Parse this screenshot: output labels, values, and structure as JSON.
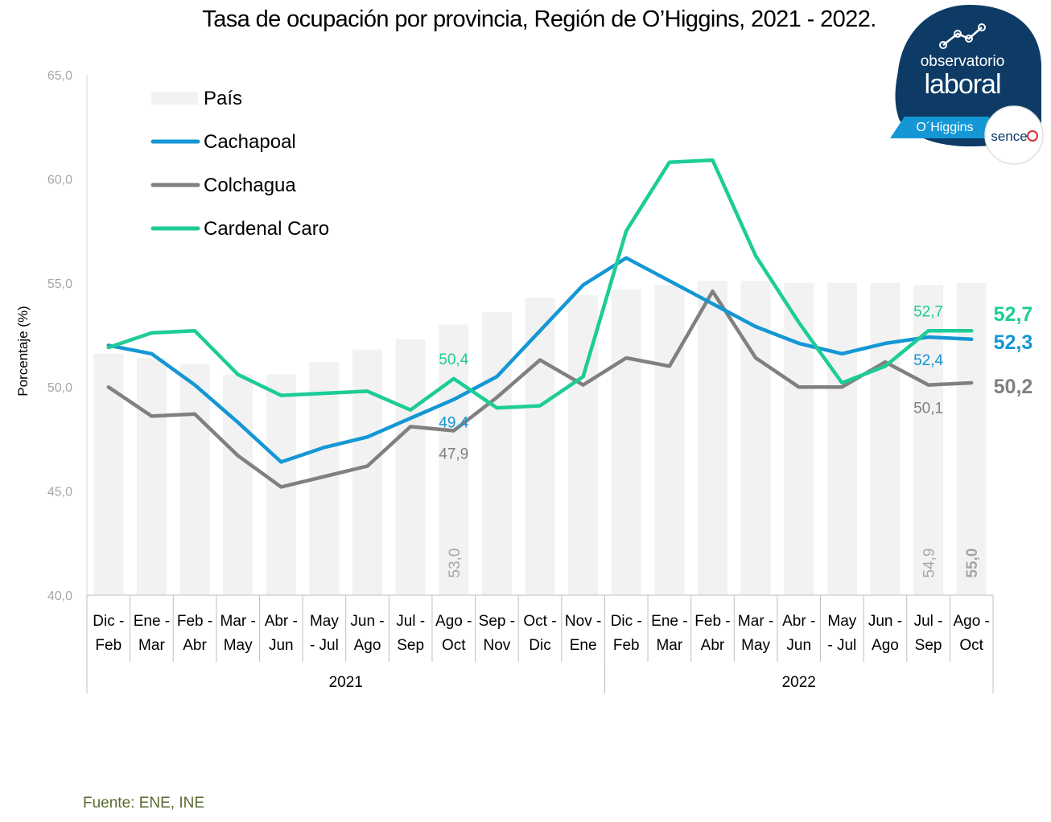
{
  "title": "Tasa de ocupación por provincia, Región de O’Higgins, 2021 - 2022.",
  "source": "Fuente: ENE, INE",
  "logo": {
    "line1": "observatorio",
    "line2": "laboral",
    "region": "O´Higgins",
    "partner": "sence"
  },
  "colors": {
    "pais": "#f2f2f2",
    "cachapoal": "#1497d4",
    "colchagua": "#808080",
    "cardenal_caro": "#1dcc96",
    "axis_text": "#a6a6a6",
    "logo_dark": "#0d3b66",
    "partner_red": "#d32f2f"
  },
  "chart_data": {
    "type": "bar+line",
    "ylabel": "Porcentaje (%)",
    "ylim": [
      40,
      65
    ],
    "yticks": [
      "40,0",
      "45,0",
      "50,0",
      "55,0",
      "60,0",
      "65,0"
    ],
    "categories": [
      "Dic - Feb",
      "Ene - Mar",
      "Feb - Abr",
      "Mar - May",
      "Abr - Jun",
      "May - Jul",
      "Jun - Ago",
      "Jul - Sep",
      "Ago - Oct",
      "Sep - Nov",
      "Oct - Dic",
      "Nov - Ene",
      "Dic - Feb",
      "Ene - Mar",
      "Feb - Abr",
      "Mar - May",
      "Abr - Jun",
      "May - Jul",
      "Jun - Ago",
      "Jul - Sep",
      "Ago - Oct"
    ],
    "category_lines": [
      [
        "Dic -",
        "Feb"
      ],
      [
        "Ene -",
        "Mar"
      ],
      [
        "Feb -",
        "Abr"
      ],
      [
        "Mar -",
        "May"
      ],
      [
        "Abr -",
        "Jun"
      ],
      [
        "May",
        "- Jul"
      ],
      [
        "Jun -",
        "Ago"
      ],
      [
        "Jul -",
        "Sep"
      ],
      [
        "Ago -",
        "Oct"
      ],
      [
        "Sep -",
        "Nov"
      ],
      [
        "Oct -",
        "Dic"
      ],
      [
        "Nov -",
        "Ene"
      ],
      [
        "Dic -",
        "Feb"
      ],
      [
        "Ene -",
        "Mar"
      ],
      [
        "Feb -",
        "Abr"
      ],
      [
        "Mar -",
        "May"
      ],
      [
        "Abr -",
        "Jun"
      ],
      [
        "May",
        "- Jul"
      ],
      [
        "Jun -",
        "Ago"
      ],
      [
        "Jul -",
        "Sep"
      ],
      [
        "Ago -",
        "Oct"
      ]
    ],
    "groups": [
      {
        "label": "2021",
        "from": 0,
        "to": 11
      },
      {
        "label": "2022",
        "from": 12,
        "to": 20
      }
    ],
    "bar_series": {
      "name": "País",
      "values": [
        51.6,
        51.4,
        51.1,
        50.6,
        50.6,
        51.2,
        51.8,
        52.3,
        53.0,
        53.6,
        54.3,
        54.4,
        54.7,
        54.9,
        55.1,
        55.1,
        55.0,
        55.0,
        55.0,
        54.9,
        55.0
      ]
    },
    "series": [
      {
        "name": "Cachapoal",
        "key": "cachapoal",
        "values": [
          52.0,
          51.6,
          50.1,
          48.3,
          46.4,
          47.1,
          47.6,
          48.5,
          49.4,
          50.5,
          52.7,
          54.9,
          56.2,
          55.1,
          54.0,
          52.9,
          52.1,
          51.6,
          52.1,
          52.4,
          52.3
        ]
      },
      {
        "name": "Colchagua",
        "key": "colchagua",
        "values": [
          50.0,
          48.6,
          48.7,
          46.7,
          45.2,
          45.7,
          46.2,
          48.1,
          47.9,
          49.5,
          51.3,
          50.1,
          51.4,
          51.0,
          54.6,
          51.4,
          50.0,
          50.0,
          51.2,
          50.1,
          50.2
        ]
      },
      {
        "name": "Cardenal Caro",
        "key": "cardenal_caro",
        "values": [
          51.9,
          52.6,
          52.7,
          50.6,
          49.6,
          49.7,
          49.8,
          48.9,
          50.4,
          49.0,
          49.1,
          50.5,
          57.5,
          60.8,
          60.9,
          56.3,
          53.1,
          50.2,
          51.0,
          52.7,
          52.7
        ]
      }
    ],
    "annotations": [
      {
        "series": "cardenal_caro",
        "index": 8,
        "text": "50,4",
        "pos": "above"
      },
      {
        "series": "cachapoal",
        "index": 8,
        "text": "49,4",
        "pos": "below"
      },
      {
        "series": "colchagua",
        "index": 8,
        "text": "47,9",
        "pos": "below"
      },
      {
        "series": "cardenal_caro",
        "index": 19,
        "text": "52,7",
        "pos": "above"
      },
      {
        "series": "cachapoal",
        "index": 19,
        "text": "52,4",
        "pos": "below"
      },
      {
        "series": "colchagua",
        "index": 19,
        "text": "50,1",
        "pos": "below"
      }
    ],
    "end_labels": [
      {
        "series": "cardenal_caro",
        "text": "52,7",
        "row": 0
      },
      {
        "series": "cachapoal",
        "text": "52,3",
        "row": 1
      },
      {
        "series": "colchagua",
        "text": "50,2",
        "row": 2
      }
    ],
    "bar_labels": [
      {
        "index": 8,
        "text": "53,0",
        "bold": false
      },
      {
        "index": 19,
        "text": "54,9",
        "bold": false
      },
      {
        "index": 20,
        "text": "55,0",
        "bold": true
      }
    ],
    "legend": [
      {
        "label": "País",
        "type": "box",
        "key": "pais"
      },
      {
        "label": "Cachapoal",
        "type": "line",
        "key": "cachapoal"
      },
      {
        "label": "Colchagua",
        "type": "line",
        "key": "colchagua"
      },
      {
        "label": "Cardenal Caro",
        "type": "line",
        "key": "cardenal_caro"
      }
    ],
    "legend_position": "top-left"
  }
}
